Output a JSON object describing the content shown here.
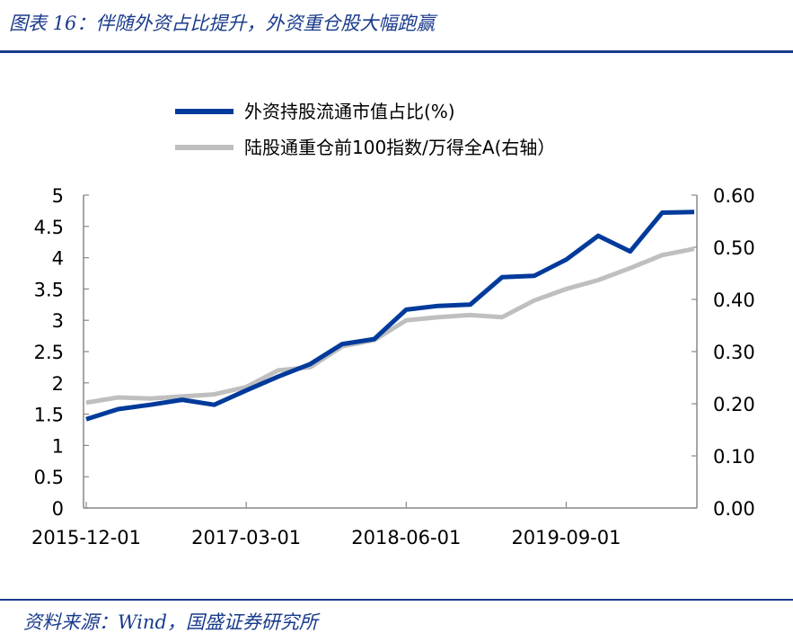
{
  "header": {
    "figure_title": "图表 16：伴随外资占比提升，外资重仓股大幅跑赢"
  },
  "footer": {
    "source": "资料来源：Wind，国盛证券研究所"
  },
  "colors": {
    "series_primary": "#003a9b",
    "series_secondary": "#bfbfbf",
    "axis": "#888888",
    "rule": "#1a3b8c"
  },
  "chart_data": {
    "type": "line",
    "title": "",
    "legend_position": "top-center",
    "grid": false,
    "x": [
      "2015-12-01",
      "2016-03-01",
      "2016-06-01",
      "2016-09-01",
      "2016-12-01",
      "2017-03-01",
      "2017-06-01",
      "2017-09-01",
      "2017-12-01",
      "2018-03-01",
      "2018-06-01",
      "2018-09-01",
      "2018-12-01",
      "2019-03-01",
      "2019-06-01",
      "2019-09-01",
      "2019-12-01",
      "2020-03-01",
      "2020-06-01",
      "2020-09-01"
    ],
    "x_tick_labels": [
      "2015-12-01",
      "2017-03-01",
      "2018-06-01",
      "2019-09-01"
    ],
    "y_left": {
      "ylim": [
        0,
        5
      ],
      "ticks": [
        "5",
        "4.5",
        "4",
        "3.5",
        "3",
        "2.5",
        "2",
        "1.5",
        "1",
        "0.5",
        "0"
      ]
    },
    "y_right": {
      "ylim": [
        0,
        0.6
      ],
      "ticks": [
        "0.60",
        "0.50",
        "0.40",
        "0.30",
        "0.20",
        "0.10",
        "0.00"
      ]
    },
    "series": [
      {
        "name": "外资持股流通市值占比(%)",
        "axis": "left",
        "color": "#003a9b",
        "values": [
          1.42,
          1.58,
          1.65,
          1.73,
          1.65,
          1.88,
          2.1,
          2.3,
          2.62,
          2.7,
          3.17,
          3.23,
          3.25,
          3.69,
          3.71,
          3.97,
          4.35,
          4.1,
          4.72,
          4.73
        ]
      },
      {
        "name": "陆股通重仓前100指数/万得全A(右轴）",
        "axis": "right",
        "color": "#bfbfbf",
        "values": [
          0.202,
          0.212,
          0.21,
          0.214,
          0.218,
          0.232,
          0.264,
          0.27,
          0.31,
          0.322,
          0.36,
          0.366,
          0.37,
          0.366,
          0.398,
          0.42,
          0.437,
          0.46,
          0.485,
          0.497
        ]
      }
    ]
  }
}
